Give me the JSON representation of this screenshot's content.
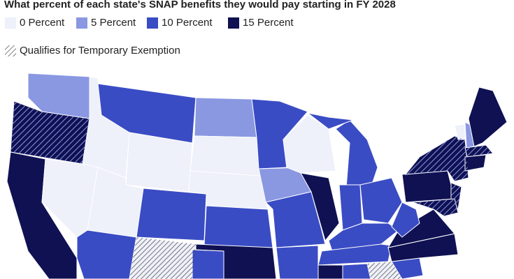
{
  "title": "What percent of each state's SNAP benefits they would pay starting in FY 2028",
  "legend": {
    "items": [
      {
        "label": "0 Percent",
        "color": "#eef0fa"
      },
      {
        "label": "5 Percent",
        "color": "#8a98e2"
      },
      {
        "label": "10 Percent",
        "color": "#3a4cc4"
      },
      {
        "label": "15 Percent",
        "color": "#0f1152"
      }
    ],
    "exemption": "Qualifies for Temporary Exemption"
  }
}
